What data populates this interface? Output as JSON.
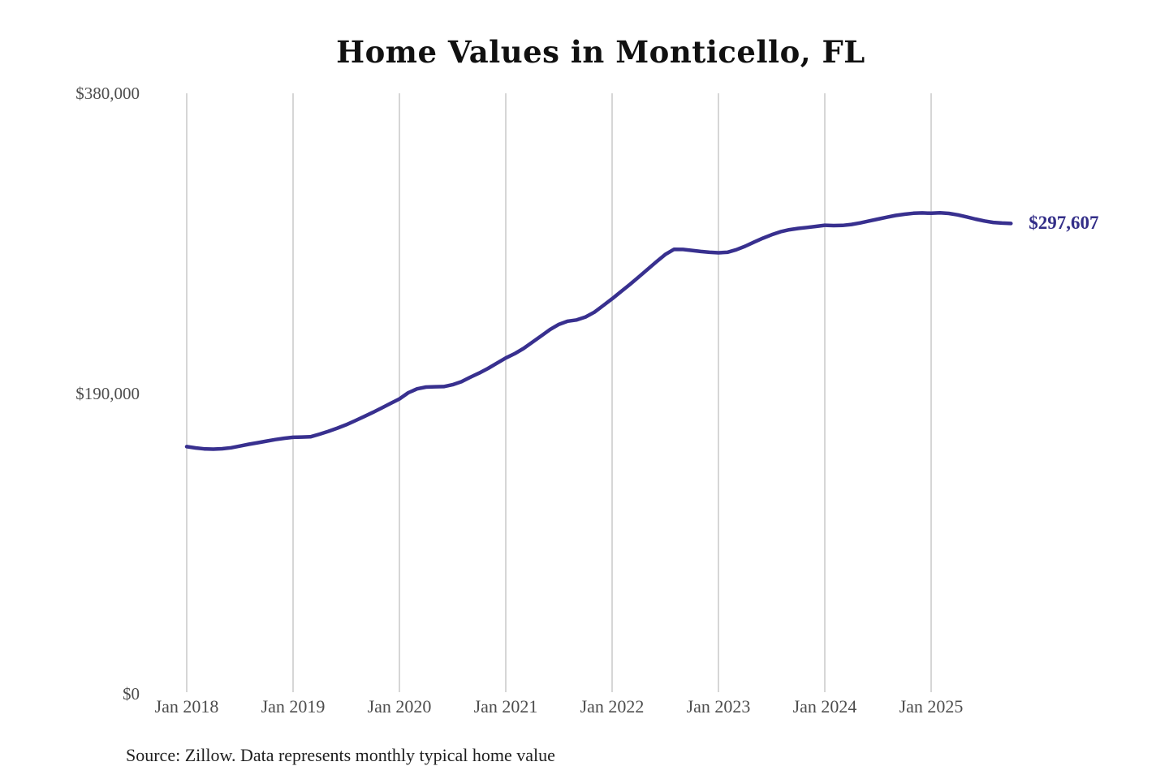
{
  "page": {
    "background_color": "#ffffff"
  },
  "chart": {
    "title": "Home Values in Monticello, FL",
    "end_label": "$297,607",
    "source_note": "Source: Zillow. Data represents monthly typical home value",
    "colors": {
      "line": "#38308f",
      "end_label_text": "#332e88",
      "gridline": "#c9c9c9",
      "title_text": "#111111",
      "axis_text": "#4d4d4d",
      "source_text": "#1f1f1f"
    }
  },
  "chart_data": {
    "type": "line",
    "title": "Home Values in Monticello, FL",
    "xlabel": "",
    "ylabel": "",
    "x_tick_labels": [
      "Jan 2018",
      "Jan 2019",
      "Jan 2020",
      "Jan 2021",
      "Jan 2022",
      "Jan 2023",
      "Jan 2024",
      "Jan 2025"
    ],
    "y_tick_labels": [
      "$0",
      "$190,000",
      "$380,000"
    ],
    "yticks": [
      0,
      190000,
      380000
    ],
    "ylim": [
      0,
      380000
    ],
    "grid": "vertical-only",
    "legend_position": "none",
    "annotation": "$297,607",
    "end_label_value": 297607,
    "series": [
      {
        "name": "Monthly typical home value",
        "start_month": "2018-01",
        "end_month": "2025-10",
        "values": [
          156400,
          155600,
          155000,
          154800,
          155100,
          155700,
          156800,
          157900,
          158900,
          159900,
          160900,
          161700,
          162300,
          162500,
          162700,
          164300,
          166100,
          168100,
          170300,
          172800,
          175400,
          178100,
          180900,
          183800,
          186600,
          190500,
          193000,
          194100,
          194300,
          194400,
          195600,
          197500,
          200300,
          203000,
          205900,
          209200,
          212500,
          215200,
          218500,
          222500,
          226500,
          230500,
          233800,
          235800,
          236600,
          238500,
          241500,
          245700,
          250000,
          254500,
          259000,
          263800,
          268600,
          273400,
          278000,
          281300,
          281200,
          280600,
          279900,
          279400,
          279100,
          279400,
          281000,
          283200,
          285800,
          288300,
          290500,
          292400,
          293700,
          294500,
          295100,
          295800,
          296500,
          296300,
          296400,
          297000,
          298000,
          299200,
          300400,
          301600,
          302700,
          303500,
          304100,
          304300,
          304100,
          304400,
          304000,
          303100,
          301800,
          300400,
          299200,
          298300,
          297900,
          297607
        ]
      }
    ]
  }
}
